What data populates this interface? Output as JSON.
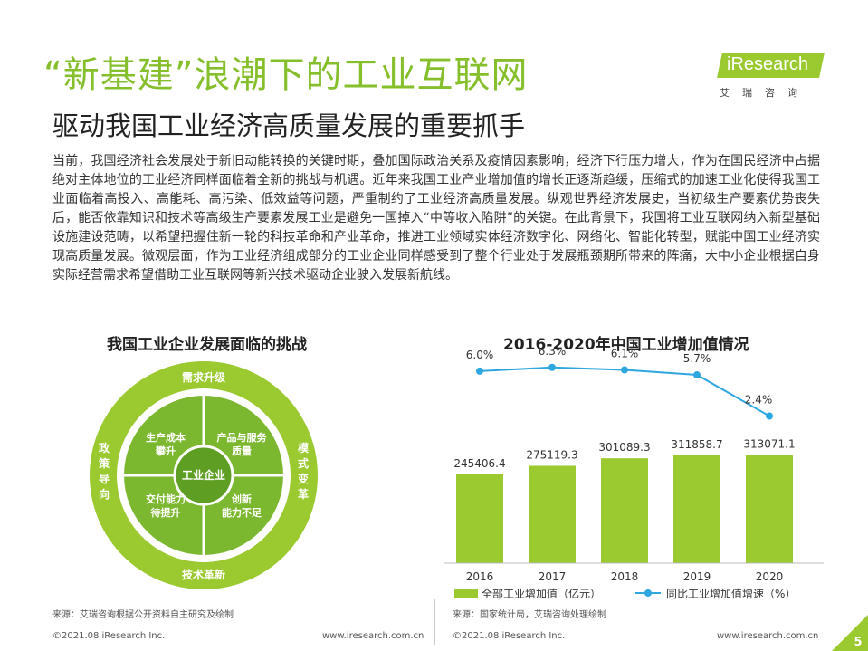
{
  "header": {
    "title": "“新基建”浪潮下的工业互联网",
    "subtitle": "驱动我国工业经济高质量发展的重要抓手",
    "logo_text": "iResearch",
    "logo_cn": "艾瑞咨询"
  },
  "intro": "当前，我国经济社会发展处于新旧动能转换的关键时期，叠加国际政治关系及疫情因素影响，经济下行压力增大，作为在国民经济中占据绝对主体地位的工业经济同样面临着全新的挑战与机遇。近年来我国工业产业增加值的增长正逐渐趋缓，压缩式的加速工业化使得我国工业面临着高投入、高能耗、高污染、低效益等问题，严重制约了工业经济高质量发展。纵观世界经济发展史，当初级生产要素优势丧失后，能否依靠知识和技术等高级生产要素发展工业是避免一国掉入“中等收入陷阱”的关键。在此背景下，我国将工业互联网纳入新型基础设施建设范畴，以希望把握住新一轮的科技革命和产业革命，推进工业领域实体经济数字化、网络化、智能化转型，赋能中国工业经济实现高质量发展。微观层面，作为工业经济组成部分的工业企业同样感受到了整个行业处于发展瓶颈期所带来的阵痛，大中小企业根据自身实际经营需求希望借助工业互联网等新兴技术驱动企业驶入发展新航线。",
  "diagram": {
    "title": "我国工业企业发展面临的挑战",
    "center": "工业企业",
    "outer": {
      "top": "需求升级",
      "right": "模式变革",
      "bottom": "技术革新",
      "left": "政策导向"
    },
    "inner": [
      [
        "生产成本",
        "攀升"
      ],
      [
        "产品与服务",
        "质量"
      ],
      [
        "交付能力",
        "待提升"
      ],
      [
        "创新",
        "能力不足"
      ]
    ],
    "colors": {
      "outer": "#9bc930",
      "mid": "#ffffff",
      "inner": "#7cb82f",
      "center": "#5d9e23"
    }
  },
  "chart_data": {
    "type": "bar",
    "title": "2016-2020年中国工业增加值情况",
    "categories": [
      "2016",
      "2017",
      "2018",
      "2019",
      "2020"
    ],
    "series": [
      {
        "name": "全部工业增加值（亿元）",
        "type": "bar",
        "color": "#9bc930",
        "values": [
          245406.4,
          275119.3,
          301089.3,
          311858.7,
          313071.1
        ],
        "labels": [
          "245406.4",
          "275119.3",
          "301089.3",
          "311858.7",
          "313071.1"
        ]
      },
      {
        "name": "同比工业增加值增速（%）",
        "type": "line",
        "color": "#2ea7e0",
        "values": [
          6.0,
          6.3,
          6.1,
          5.7,
          2.4
        ],
        "labels": [
          "6.0%",
          "6.3%",
          "6.1%",
          "5.7%",
          "2.4%"
        ]
      }
    ]
  },
  "notes": {
    "left_source": "来源：艾瑞咨询根据公开资料自主研究及绘制",
    "right_source": "来源：国家统计局，艾瑞咨询处理绘制"
  },
  "footer": {
    "copyright": "©2021.08 iResearch Inc.",
    "url": "www.iresearch.com.cn",
    "page": "5"
  },
  "colors": {
    "accent": "#86bf2c",
    "bar": "#9bc930",
    "line": "#2ea7e0"
  }
}
